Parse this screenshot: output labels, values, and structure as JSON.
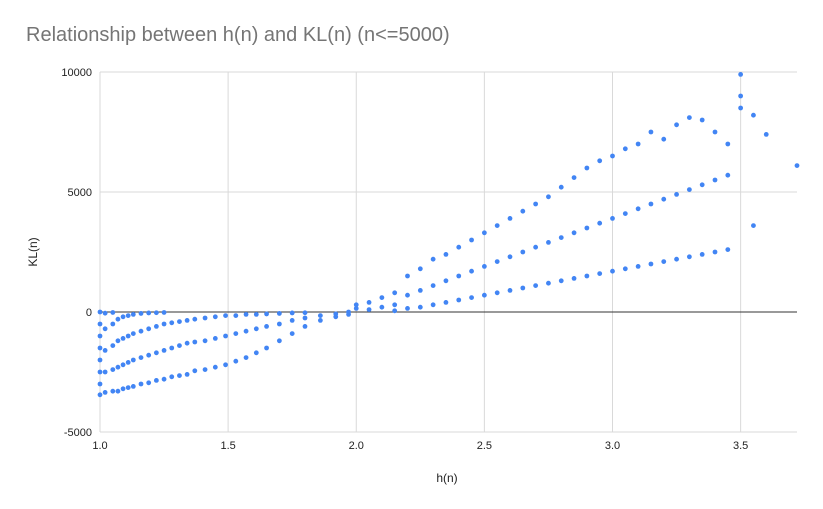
{
  "chart_data": {
    "type": "scatter",
    "title": "Relationship between h(n) and KL(n) (n<=5000)",
    "xlabel": "h(n)",
    "ylabel": "KL(n)",
    "xlim": [
      1.0,
      3.72
    ],
    "ylim": [
      -5000,
      10000
    ],
    "x_ticks": [
      "1.0",
      "1.5",
      "2.0",
      "2.5",
      "3.0",
      "3.5"
    ],
    "y_ticks": [
      "-5000",
      "0",
      "5000",
      "10000"
    ],
    "grid": true,
    "legend": "none",
    "point_color": "#4285f4",
    "series": [
      {
        "points": [
          [
            1.0,
            -3450
          ],
          [
            1.0,
            -3000
          ],
          [
            1.0,
            -2500
          ],
          [
            1.0,
            -2000
          ],
          [
            1.0,
            -1500
          ],
          [
            1.0,
            -1000
          ],
          [
            1.0,
            -500
          ],
          [
            1.0,
            0
          ],
          [
            1.02,
            -3350
          ],
          [
            1.02,
            -2500
          ],
          [
            1.02,
            -1600
          ],
          [
            1.02,
            -700
          ],
          [
            1.02,
            -50
          ],
          [
            1.05,
            -3300
          ],
          [
            1.05,
            -2400
          ],
          [
            1.05,
            -1400
          ],
          [
            1.05,
            -500
          ],
          [
            1.05,
            -20
          ],
          [
            1.07,
            -3300
          ],
          [
            1.07,
            -2300
          ],
          [
            1.07,
            -1200
          ],
          [
            1.07,
            -300
          ],
          [
            1.09,
            -3200
          ],
          [
            1.09,
            -2200
          ],
          [
            1.09,
            -1100
          ],
          [
            1.09,
            -200
          ],
          [
            1.11,
            -3150
          ],
          [
            1.11,
            -2100
          ],
          [
            1.11,
            -1000
          ],
          [
            1.11,
            -150
          ],
          [
            1.13,
            -3100
          ],
          [
            1.13,
            -2000
          ],
          [
            1.13,
            -900
          ],
          [
            1.13,
            -100
          ],
          [
            1.16,
            -3000
          ],
          [
            1.16,
            -1900
          ],
          [
            1.16,
            -800
          ],
          [
            1.16,
            -60
          ],
          [
            1.19,
            -2950
          ],
          [
            1.19,
            -1800
          ],
          [
            1.19,
            -700
          ],
          [
            1.19,
            -40
          ],
          [
            1.22,
            -2850
          ],
          [
            1.22,
            -1700
          ],
          [
            1.22,
            -600
          ],
          [
            1.22,
            -30
          ],
          [
            1.25,
            -2800
          ],
          [
            1.25,
            -1600
          ],
          [
            1.25,
            -500
          ],
          [
            1.25,
            -20
          ],
          [
            1.28,
            -2700
          ],
          [
            1.28,
            -1500
          ],
          [
            1.28,
            -450
          ],
          [
            1.31,
            -2650
          ],
          [
            1.31,
            -1400
          ],
          [
            1.31,
            -400
          ],
          [
            1.34,
            -2600
          ],
          [
            1.34,
            -1300
          ],
          [
            1.34,
            -350
          ],
          [
            1.37,
            -2450
          ],
          [
            1.37,
            -1250
          ],
          [
            1.37,
            -300
          ],
          [
            1.41,
            -2400
          ],
          [
            1.41,
            -1200
          ],
          [
            1.41,
            -250
          ],
          [
            1.45,
            -2300
          ],
          [
            1.45,
            -1100
          ],
          [
            1.45,
            -200
          ],
          [
            1.49,
            -2200
          ],
          [
            1.49,
            -1000
          ],
          [
            1.49,
            -150
          ],
          [
            1.53,
            -2050
          ],
          [
            1.53,
            -900
          ],
          [
            1.53,
            -150
          ],
          [
            1.57,
            -1900
          ],
          [
            1.57,
            -800
          ],
          [
            1.57,
            -100
          ],
          [
            1.61,
            -1700
          ],
          [
            1.61,
            -700
          ],
          [
            1.61,
            -100
          ],
          [
            1.65,
            -1500
          ],
          [
            1.65,
            -600
          ],
          [
            1.65,
            -80
          ],
          [
            1.7,
            -1200
          ],
          [
            1.7,
            -500
          ],
          [
            1.7,
            -60
          ],
          [
            1.75,
            -900
          ],
          [
            1.75,
            -350
          ],
          [
            1.75,
            -40
          ],
          [
            1.8,
            -600
          ],
          [
            1.8,
            -250
          ],
          [
            1.8,
            -30
          ],
          [
            1.86,
            -350
          ],
          [
            1.86,
            -150
          ],
          [
            1.92,
            -200
          ],
          [
            1.92,
            -80
          ],
          [
            1.97,
            -100
          ],
          [
            1.97,
            0
          ],
          [
            2.0,
            300
          ],
          [
            2.0,
            150
          ],
          [
            2.05,
            400
          ],
          [
            2.05,
            100
          ],
          [
            2.1,
            600
          ],
          [
            2.1,
            200
          ],
          [
            2.15,
            800
          ],
          [
            2.15,
            300
          ],
          [
            2.15,
            50
          ],
          [
            2.2,
            1500
          ],
          [
            2.2,
            700
          ],
          [
            2.2,
            150
          ],
          [
            2.25,
            1800
          ],
          [
            2.25,
            900
          ],
          [
            2.25,
            200
          ],
          [
            2.3,
            2200
          ],
          [
            2.3,
            1100
          ],
          [
            2.3,
            300
          ],
          [
            2.35,
            2400
          ],
          [
            2.35,
            1300
          ],
          [
            2.35,
            400
          ],
          [
            2.4,
            2700
          ],
          [
            2.4,
            1500
          ],
          [
            2.4,
            500
          ],
          [
            2.45,
            3000
          ],
          [
            2.45,
            1700
          ],
          [
            2.45,
            600
          ],
          [
            2.5,
            3300
          ],
          [
            2.5,
            1900
          ],
          [
            2.5,
            700
          ],
          [
            2.55,
            3600
          ],
          [
            2.55,
            2100
          ],
          [
            2.55,
            800
          ],
          [
            2.6,
            3900
          ],
          [
            2.6,
            2300
          ],
          [
            2.6,
            900
          ],
          [
            2.65,
            4200
          ],
          [
            2.65,
            2500
          ],
          [
            2.65,
            1000
          ],
          [
            2.7,
            4500
          ],
          [
            2.7,
            2700
          ],
          [
            2.7,
            1100
          ],
          [
            2.75,
            4800
          ],
          [
            2.75,
            2900
          ],
          [
            2.75,
            1200
          ],
          [
            2.8,
            5200
          ],
          [
            2.8,
            3100
          ],
          [
            2.8,
            1300
          ],
          [
            2.85,
            5600
          ],
          [
            2.85,
            3300
          ],
          [
            2.85,
            1400
          ],
          [
            2.9,
            6000
          ],
          [
            2.9,
            3500
          ],
          [
            2.9,
            1500
          ],
          [
            2.95,
            6300
          ],
          [
            2.95,
            3700
          ],
          [
            2.95,
            1600
          ],
          [
            3.0,
            6500
          ],
          [
            3.0,
            3900
          ],
          [
            3.0,
            1700
          ],
          [
            3.05,
            6800
          ],
          [
            3.05,
            4100
          ],
          [
            3.05,
            1800
          ],
          [
            3.1,
            7000
          ],
          [
            3.1,
            4300
          ],
          [
            3.1,
            1900
          ],
          [
            3.15,
            7500
          ],
          [
            3.15,
            4500
          ],
          [
            3.15,
            2000
          ],
          [
            3.2,
            7200
          ],
          [
            3.2,
            4700
          ],
          [
            3.2,
            2100
          ],
          [
            3.25,
            7800
          ],
          [
            3.25,
            4900
          ],
          [
            3.25,
            2200
          ],
          [
            3.3,
            8100
          ],
          [
            3.3,
            5100
          ],
          [
            3.3,
            2300
          ],
          [
            3.35,
            8000
          ],
          [
            3.35,
            5300
          ],
          [
            3.35,
            2400
          ],
          [
            3.4,
            7500
          ],
          [
            3.4,
            5500
          ],
          [
            3.4,
            2500
          ],
          [
            3.45,
            7000
          ],
          [
            3.45,
            5700
          ],
          [
            3.45,
            2600
          ],
          [
            3.5,
            9900
          ],
          [
            3.5,
            9000
          ],
          [
            3.5,
            8500
          ],
          [
            3.55,
            8200
          ],
          [
            3.55,
            3600
          ],
          [
            3.6,
            7400
          ],
          [
            3.72,
            6100
          ]
        ]
      }
    ]
  }
}
